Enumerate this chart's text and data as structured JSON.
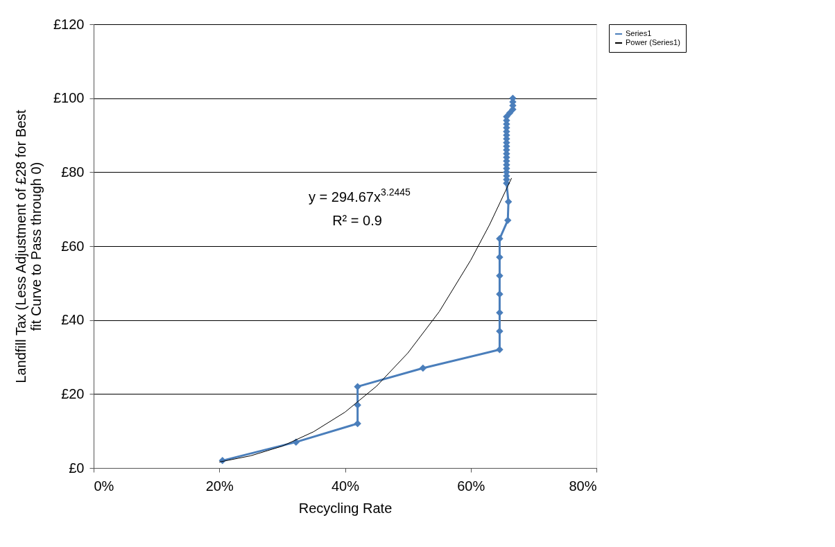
{
  "chart_data": {
    "type": "line",
    "xlabel": "Recycling Rate",
    "ylabel": "Landfill Tax (Less Adjustment of £28 for Best fit Curve to Pass through 0)",
    "xlim": [
      0,
      80
    ],
    "xticks": [
      {
        "value": 0,
        "label": "0%"
      },
      {
        "value": 20,
        "label": "20%"
      },
      {
        "value": 40,
        "label": "40%"
      },
      {
        "value": 60,
        "label": "60%"
      },
      {
        "value": 80,
        "label": "80%"
      }
    ],
    "ylim": [
      0,
      120
    ],
    "yticks": [
      {
        "value": 0,
        "label": "£0"
      },
      {
        "value": 20,
        "label": "£20"
      },
      {
        "value": 40,
        "label": "£40"
      },
      {
        "value": 60,
        "label": "£60"
      },
      {
        "value": 80,
        "label": "£80"
      },
      {
        "value": 100,
        "label": "£100"
      },
      {
        "value": 120,
        "label": "£120"
      }
    ],
    "grid": "y",
    "legend": "right",
    "annotations": [
      "y = 294.67x$^{3.2445}$",
      "R² = 0.9"
    ],
    "series": [
      {
        "name": "Series1",
        "marker": "diamond",
        "color": "#4a7ebb",
        "x": [
          20.5,
          32.2,
          42.0,
          42.0,
          42.0,
          52.4,
          64.6,
          64.6,
          64.6,
          64.6,
          64.6,
          64.6,
          64.6,
          65.9,
          66.0,
          65.7,
          65.7,
          65.7,
          65.7,
          65.7,
          65.7,
          65.7,
          65.7,
          65.7,
          65.7,
          65.7,
          65.7,
          65.7,
          65.7,
          65.7,
          65.7,
          65.7,
          65.7,
          65.7,
          66.2,
          66.7,
          66.7,
          66.7,
          66.7
        ],
        "values": [
          2,
          7,
          12,
          17,
          22,
          27,
          32,
          37,
          42,
          47,
          52,
          57,
          62,
          67,
          72,
          77,
          78,
          79,
          80,
          81,
          82,
          83,
          84,
          85,
          86,
          87,
          88,
          89,
          90,
          91,
          92,
          93,
          94,
          95,
          96,
          97,
          98,
          99,
          100
        ]
      },
      {
        "name": "Power (Series1)",
        "marker": "none",
        "color": "#000000",
        "x": [
          20,
          25,
          30,
          35,
          40,
          45,
          50,
          55,
          60,
          63,
          66.5
        ],
        "values": [
          1.6,
          3.3,
          5.9,
          9.8,
          15.1,
          22.1,
          31.1,
          42.3,
          56.2,
          65.8,
          78.4
        ]
      }
    ]
  }
}
